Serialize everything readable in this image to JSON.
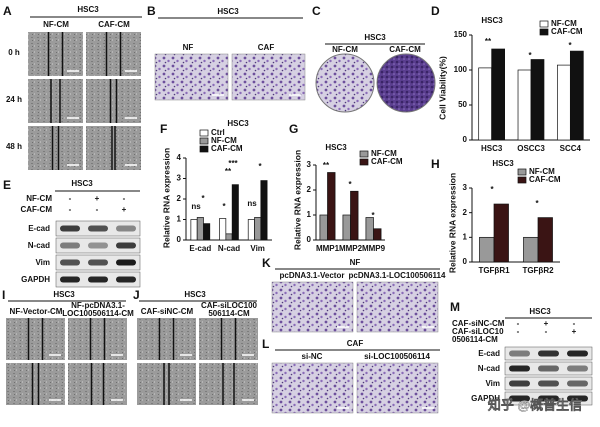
{
  "panels": {
    "A": {
      "letter": "A",
      "title": "HSC3",
      "columns": [
        "NF-CM",
        "CAF-CM"
      ],
      "rows": [
        "0 h",
        "24 h",
        "48 h"
      ]
    },
    "B": {
      "letter": "B",
      "title": "HSC3",
      "columns": [
        "NF",
        "CAF"
      ]
    },
    "C": {
      "letter": "C",
      "title": "HSC3",
      "columns": [
        "NF-CM",
        "CAF-CM"
      ]
    },
    "D": {
      "letter": "D"
    },
    "E": {
      "letter": "E",
      "title": "HSC3",
      "conditions": [
        {
          "label": "NF-CM",
          "signs": [
            "-",
            "+",
            "-"
          ]
        },
        {
          "label": "CAF-CM",
          "signs": [
            "-",
            "-",
            "+"
          ]
        }
      ],
      "blots": [
        "E-cad",
        "N-cad",
        "Vim",
        "GAPDH"
      ]
    },
    "F": {
      "letter": "F"
    },
    "G": {
      "letter": "G"
    },
    "H": {
      "letter": "H"
    },
    "I": {
      "letter": "I",
      "title": "HSC3",
      "columns": [
        [
          "NF-Vector-CM"
        ],
        [
          "NF-pcDNA3.1-",
          "LOC100506114-CM"
        ]
      ]
    },
    "J": {
      "letter": "J",
      "title": "HSC3",
      "columns": [
        [
          "CAF-siNC-CM"
        ],
        [
          "CAF-siLOC100",
          "506114-CM"
        ]
      ]
    },
    "K": {
      "letter": "K",
      "title": "NF",
      "columns": [
        "pcDNA3.1-Vector",
        "pcDNA3.1-LOC100506114"
      ]
    },
    "L": {
      "letter": "L",
      "title": "CAF",
      "columns": [
        "si-NC",
        "si-LOC100506114"
      ]
    },
    "M": {
      "letter": "M",
      "title": "HSC3",
      "conditions": [
        {
          "label": [
            "CAF-siNC-CM"
          ],
          "signs": [
            "-",
            "+",
            "-"
          ]
        },
        {
          "label": [
            "CAF-siLOC10",
            "0506114-CM"
          ],
          "signs": [
            "-",
            "-",
            "+"
          ]
        }
      ],
      "blots": [
        "E-cad",
        "N-cad",
        "Vim",
        "GAPDH"
      ]
    }
  },
  "chart_data": [
    {
      "type": "bar",
      "title": "HSC3",
      "y_label": "Cell Viability(%)",
      "categories": [
        "HSC3",
        "OSCC3",
        "SCC4"
      ],
      "series": [
        {
          "name": "NF-CM",
          "color": "#ffffff",
          "values": [
            103,
            100,
            107
          ]
        },
        {
          "name": "CAF-CM",
          "color": "#111111",
          "values": [
            130,
            115,
            127
          ]
        }
      ],
      "ylim": [
        0,
        150
      ],
      "yticks": [
        0,
        50,
        100,
        150
      ],
      "annotations": [
        "**",
        "*",
        "*"
      ]
    },
    {
      "type": "bar",
      "title": "HSC3",
      "y_label": "Relative RNA expression",
      "categories": [
        "E-cad",
        "N-cad",
        "Vim"
      ],
      "series": [
        {
          "name": "Ctrl",
          "color": "#ffffff",
          "values": [
            1.0,
            1.05,
            1.0
          ]
        },
        {
          "name": "NF-CM",
          "color": "#999999",
          "values": [
            1.1,
            0.3,
            1.1
          ]
        },
        {
          "name": "CAF-CM",
          "color": "#111111",
          "values": [
            0.8,
            2.7,
            2.9
          ]
        }
      ],
      "ylim": [
        0,
        4
      ],
      "yticks": [
        0,
        1,
        2,
        3,
        4
      ],
      "annotations": [
        "*",
        "ns",
        "***",
        "**",
        "*",
        "*",
        "ns"
      ]
    },
    {
      "type": "bar",
      "title": "HSC3",
      "y_label": "Relative RNA expression",
      "categories": [
        "MMP1",
        "MMP2",
        "MMP9"
      ],
      "series": [
        {
          "name": "NF-CM",
          "color": "#999999",
          "values": [
            1.0,
            1.0,
            0.9
          ]
        },
        {
          "name": "CAF-CM",
          "color": "#3a1414",
          "values": [
            2.7,
            1.95,
            0.45
          ]
        }
      ],
      "ylim": [
        0,
        3
      ],
      "yticks": [
        0,
        1,
        2,
        3
      ],
      "annotations": [
        "**",
        "*",
        "*"
      ]
    },
    {
      "type": "bar",
      "title": "HSC3",
      "y_label": "Relative RNA expression",
      "categories": [
        "TGFβR1",
        "TGFβR2"
      ],
      "series": [
        {
          "name": "NF-CM",
          "color": "#999999",
          "values": [
            1.0,
            1.0
          ]
        },
        {
          "name": "CAF-CM",
          "color": "#3a1414",
          "values": [
            2.35,
            1.8
          ]
        }
      ],
      "ylim": [
        0,
        3
      ],
      "yticks": [
        0,
        1,
        2,
        3
      ],
      "annotations": [
        "*",
        "*"
      ]
    }
  ],
  "watermark": "知乎 @概普生信"
}
